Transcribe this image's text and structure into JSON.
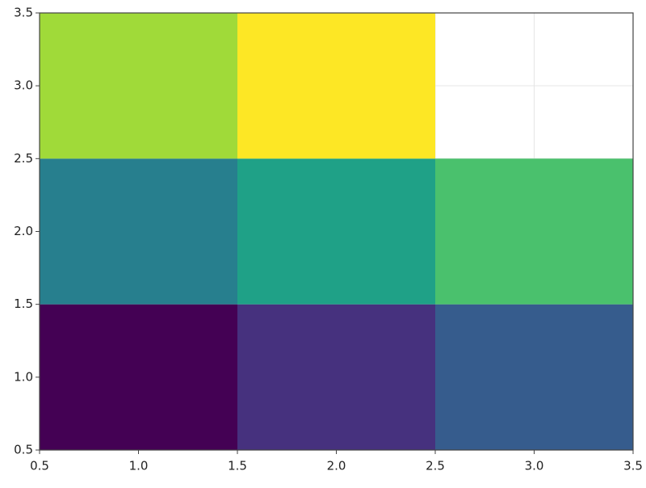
{
  "chart_data": {
    "type": "heatmap",
    "x": [
      1,
      2,
      3
    ],
    "y": [
      1,
      2,
      3
    ],
    "z": [
      [
        1,
        2,
        3
      ],
      [
        4,
        5,
        6
      ],
      [
        7,
        8,
        null
      ]
    ],
    "colors": [
      [
        "#440154",
        "#46317e",
        "#365c8d"
      ],
      [
        "#277f8e",
        "#1fa187",
        "#4ac16d"
      ],
      [
        "#a0da39",
        "#fde725",
        null
      ]
    ],
    "xlim": [
      0.5,
      3.5
    ],
    "ylim": [
      0.5,
      3.5
    ],
    "xticks": [
      0.5,
      {
        "value": 1,
        "label": "1.0"
      },
      1.5,
      {
        "value": 2,
        "label": "2.0"
      },
      2.5,
      {
        "value": 3,
        "label": "3.0"
      },
      3.5
    ],
    "yticks": [
      0.5,
      {
        "value": 1,
        "label": "1.0"
      },
      1.5,
      {
        "value": 2,
        "label": "2.0"
      },
      2.5,
      {
        "value": 3,
        "label": "3.0"
      },
      3.5
    ],
    "grid": true
  }
}
